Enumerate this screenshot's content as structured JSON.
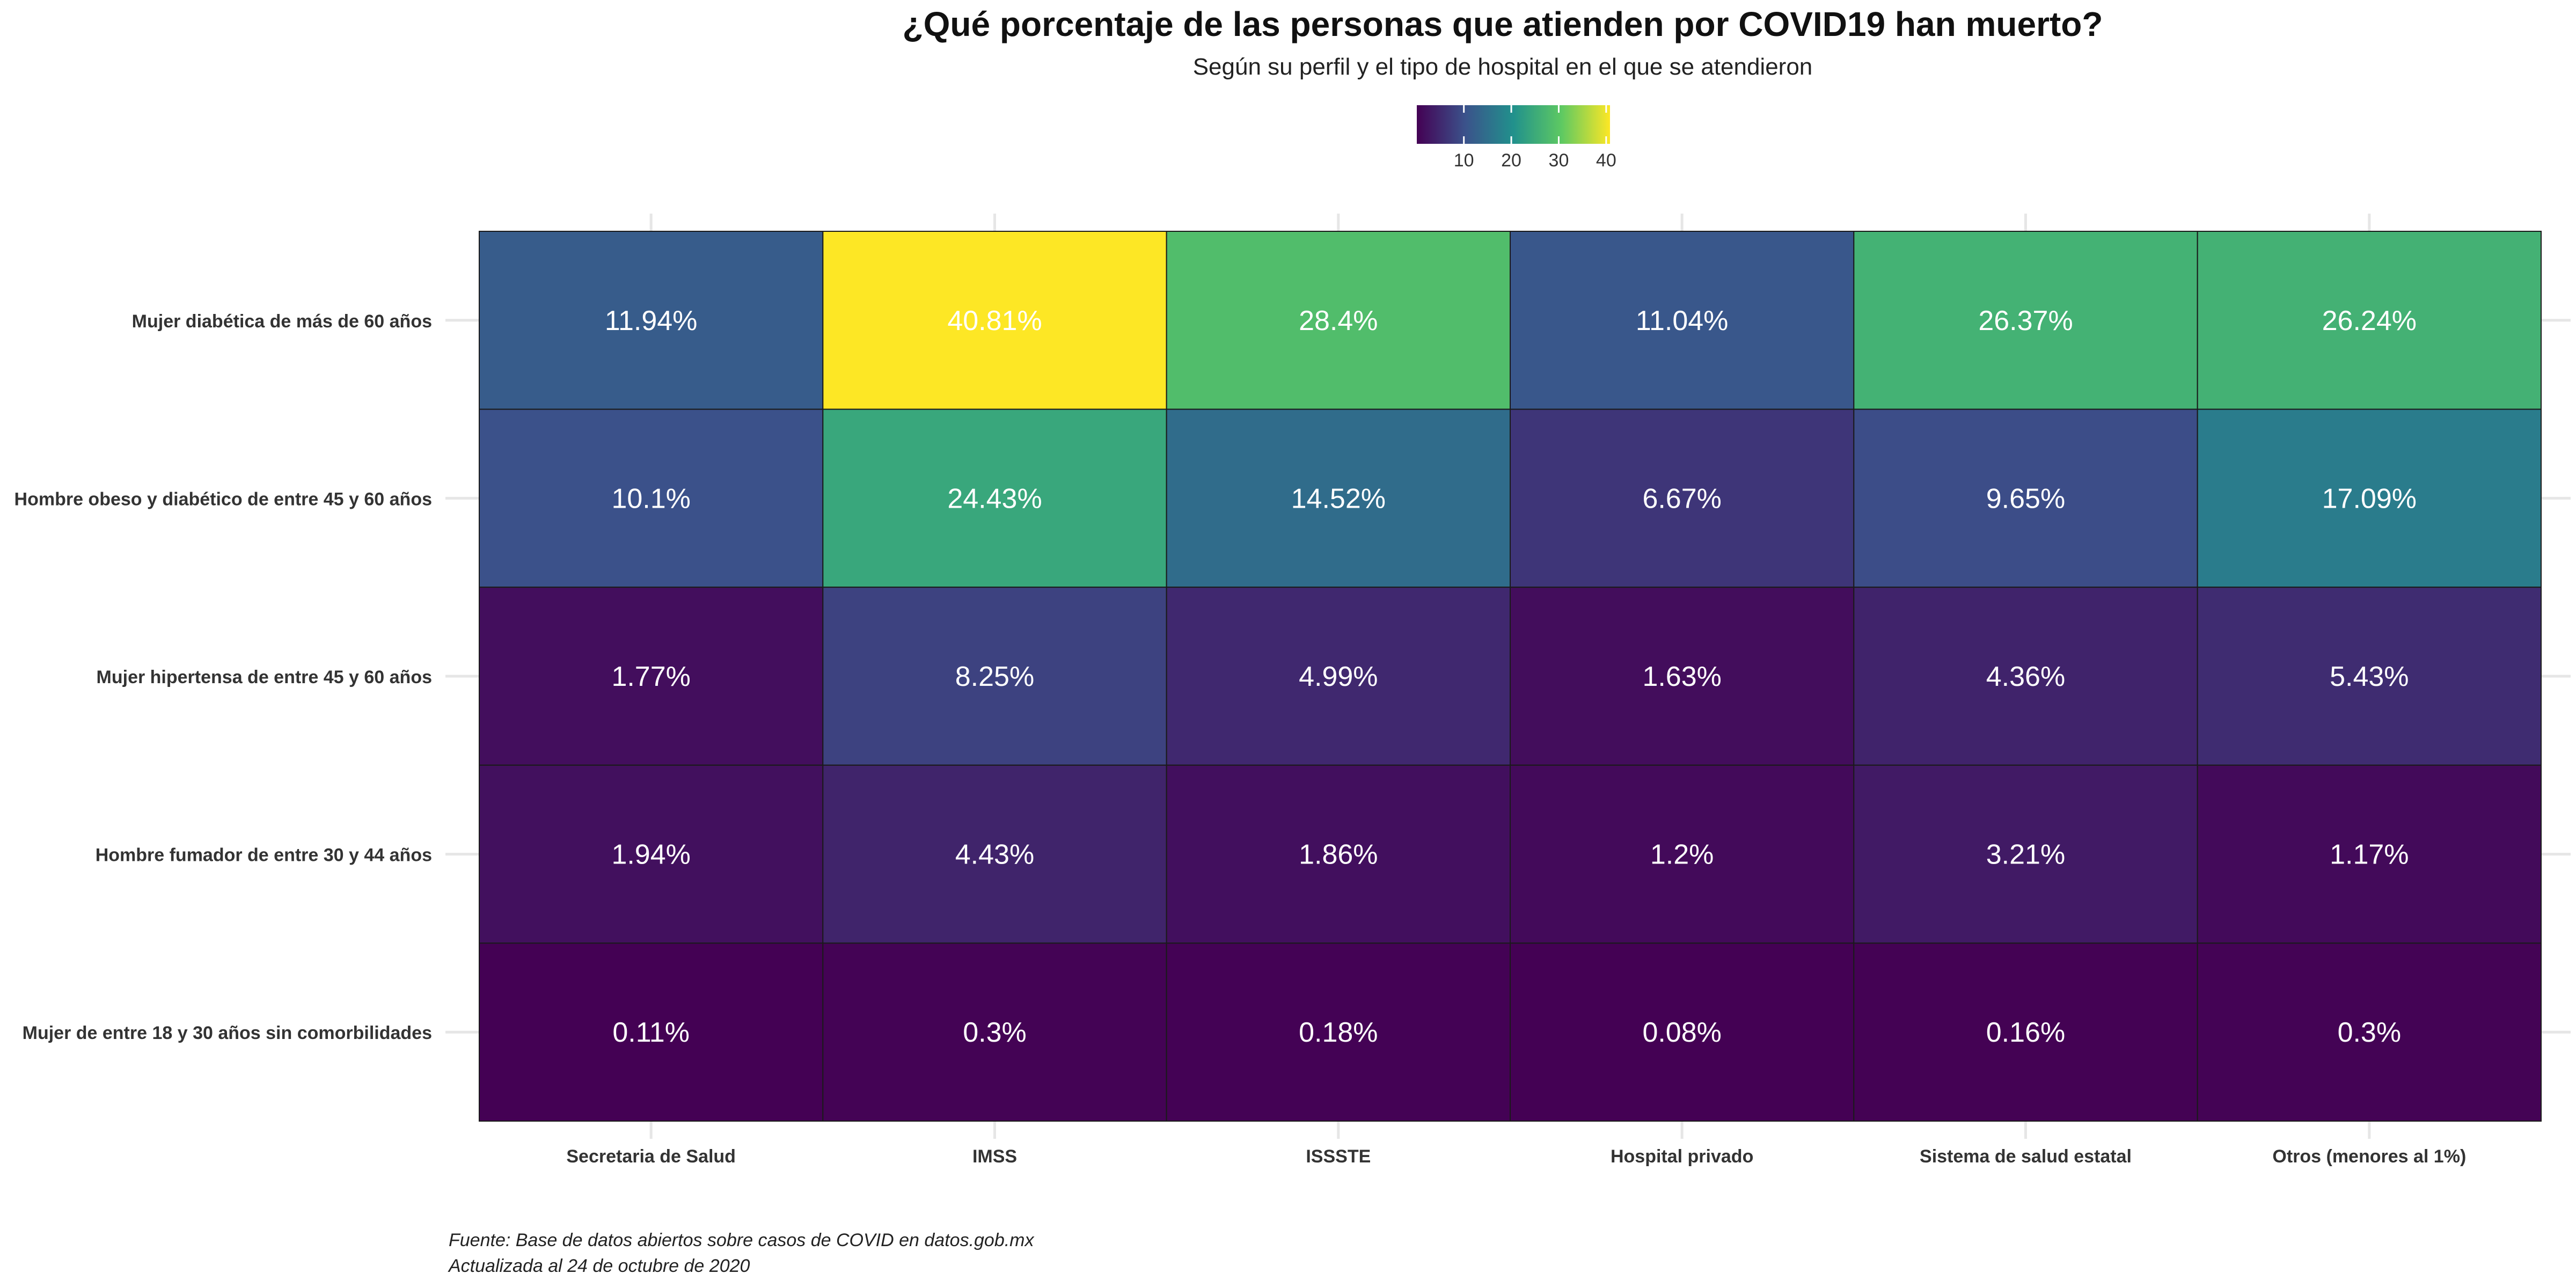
{
  "chart_data": {
    "type": "heatmap",
    "title": "¿Qué porcentaje de las personas que atienden por COVID19 han muerto?",
    "subtitle": "Según su perfil y el tipo de hospital en el que se atendieron",
    "x_categories": [
      "Secretaria de Salud",
      "IMSS",
      "ISSSTE",
      "Hospital privado",
      "Sistema de salud estatal",
      "Otros (menores al 1%)"
    ],
    "y_categories": [
      "Mujer diabética de más de 60 años",
      "Hombre obeso y diabético de entre 45 y 60 años",
      "Mujer hipertensa de entre 45 y 60 años",
      "Hombre fumador de entre 30 y 44 años",
      "Mujer de entre 18 y 30 años sin comorbilidades"
    ],
    "values": [
      [
        11.94,
        40.81,
        28.4,
        11.04,
        26.37,
        26.24
      ],
      [
        10.1,
        24.43,
        14.52,
        6.67,
        9.65,
        17.09
      ],
      [
        1.77,
        8.25,
        4.99,
        1.63,
        4.36,
        5.43
      ],
      [
        1.94,
        4.43,
        1.86,
        1.2,
        3.21,
        1.17
      ],
      [
        0.11,
        0.3,
        0.18,
        0.08,
        0.16,
        0.3
      ]
    ],
    "cell_labels": [
      [
        "11.94%",
        "40.81%",
        "28.4%",
        "11.04%",
        "26.37%",
        "26.24%"
      ],
      [
        "10.1%",
        "24.43%",
        "14.52%",
        "6.67%",
        "9.65%",
        "17.09%"
      ],
      [
        "1.77%",
        "8.25%",
        "4.99%",
        "1.63%",
        "4.36%",
        "5.43%"
      ],
      [
        "1.94%",
        "4.43%",
        "1.86%",
        "1.2%",
        "3.21%",
        "1.17%"
      ],
      [
        "0.11%",
        "0.3%",
        "0.18%",
        "0.08%",
        "0.16%",
        "0.3%"
      ]
    ],
    "color_scale": {
      "palette": "viridis",
      "colors": [
        "#440154",
        "#3b528b",
        "#21918c",
        "#5ec962",
        "#fde725"
      ],
      "domain": [
        0.08,
        40.81
      ],
      "legend_ticks": [
        10,
        20,
        30,
        40
      ],
      "legend_placement": "top"
    },
    "cell_text_color": "#ffffff",
    "grid": true
  },
  "caption": {
    "line1": "Fuente: Base de datos abiertos sobre casos de COVID en datos.gob.mx",
    "line2": "Actualizada al 24 de octubre de 2020"
  }
}
